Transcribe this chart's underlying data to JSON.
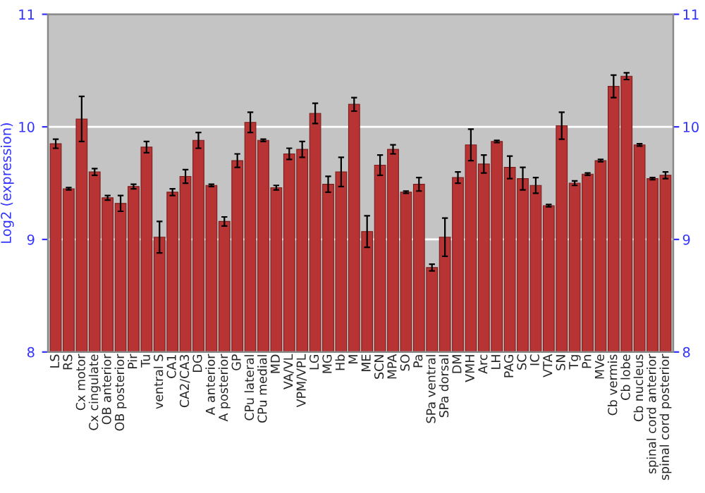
{
  "chart_data": {
    "type": "bar",
    "ylabel": "Log2 (expression)",
    "categories": [
      "LS",
      "RS",
      "Cx motor",
      "Cx cingulate",
      "OB anterior",
      "OB posterior",
      "Pir",
      "Tu",
      "ventral S",
      "CA1",
      "CA2/CA3",
      "DG",
      "A anterior",
      "A posterior",
      "GP",
      "CPu lateral",
      "CPu medial",
      "MD",
      "VA/VL",
      "VPM/VPL",
      "LG",
      "MG",
      "Hb",
      "M",
      "ME",
      "SCN",
      "MPA",
      "SO",
      "Pa",
      "SPa ventral",
      "SPa dorsal",
      "DM",
      "VMH",
      "Arc",
      "LH",
      "PAG",
      "SC",
      "IC",
      "VTA",
      "SN",
      "Tg",
      "Pn",
      "MVe",
      "Cb vermis",
      "Cb lobe",
      "Cb nucleus",
      "spinal cord anterior",
      "spinal cord posterior"
    ],
    "values": [
      9.85,
      9.45,
      10.07,
      9.6,
      9.37,
      9.32,
      9.47,
      9.82,
      9.02,
      9.42,
      9.56,
      9.88,
      9.48,
      9.16,
      9.7,
      10.04,
      9.88,
      9.46,
      9.76,
      9.8,
      10.12,
      9.49,
      9.6,
      10.2,
      9.07,
      9.66,
      9.8,
      9.42,
      9.49,
      8.75,
      9.02,
      9.55,
      9.84,
      9.67,
      9.87,
      9.64,
      9.54,
      9.48,
      9.3,
      10.01,
      9.5,
      9.58,
      9.7,
      10.36,
      10.45,
      9.84,
      9.54,
      9.57
    ],
    "errors": [
      0.04,
      0.01,
      0.2,
      0.03,
      0.02,
      0.07,
      0.02,
      0.05,
      0.14,
      0.03,
      0.06,
      0.07,
      0.01,
      0.04,
      0.06,
      0.09,
      0.01,
      0.02,
      0.05,
      0.07,
      0.09,
      0.07,
      0.13,
      0.06,
      0.14,
      0.09,
      0.04,
      0.01,
      0.06,
      0.03,
      0.17,
      0.05,
      0.14,
      0.08,
      0.01,
      0.1,
      0.1,
      0.07,
      0.01,
      0.12,
      0.02,
      0.01,
      0.01,
      0.1,
      0.03,
      0.01,
      0.01,
      0.03
    ],
    "color": "#b83434",
    "ylim": [
      8,
      11
    ],
    "yticks": [
      8,
      9,
      10,
      11
    ],
    "y2lim": [
      8,
      11
    ],
    "y2ticks": [
      8,
      9,
      10,
      11
    ],
    "grid": "y"
  }
}
